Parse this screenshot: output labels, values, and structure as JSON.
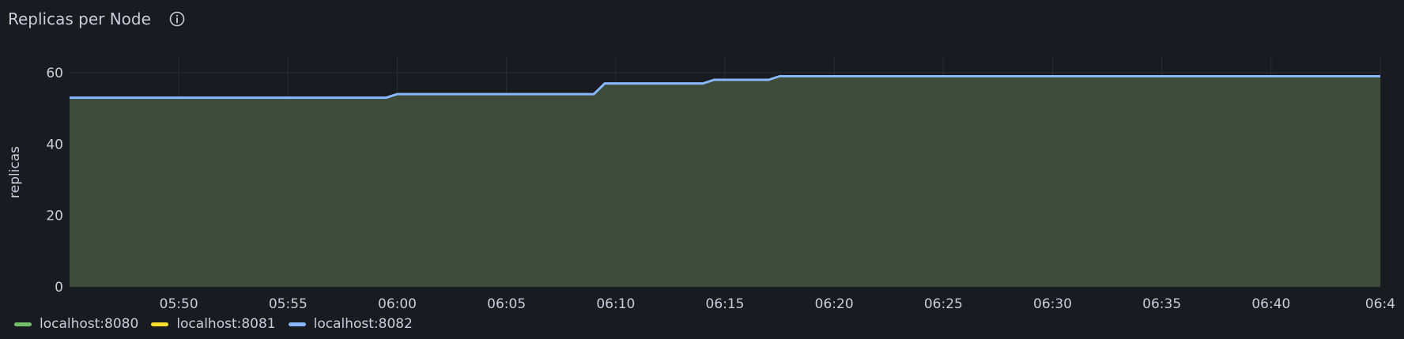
{
  "panel": {
    "title": "Replicas per Node",
    "info_icon": "info-circle-icon"
  },
  "chart_data": {
    "type": "line",
    "ylabel": "replicas",
    "xlabel": "",
    "ylim": [
      0,
      60
    ],
    "y_ticks": [
      "0",
      "20",
      "40",
      "60"
    ],
    "x_ticks": [
      "05:50",
      "05:55",
      "06:00",
      "06:05",
      "06:10",
      "06:15",
      "06:20",
      "06:25",
      "06:30",
      "06:35",
      "06:40",
      "06:4"
    ],
    "x_range": [
      "05:45",
      "06:45"
    ],
    "grid": true,
    "legend_position": "bottom-left",
    "series": [
      {
        "name": "localhost:8080",
        "color": "#73bf69",
        "x": [],
        "values": []
      },
      {
        "name": "localhost:8081",
        "color": "#fade2a",
        "x": [],
        "values": []
      },
      {
        "name": "localhost:8082",
        "color": "#8ab8ff",
        "fill": true,
        "x": [
          "05:45",
          "05:59.5",
          "06:00",
          "06:09",
          "06:09.5",
          "06:14",
          "06:14.5",
          "06:17",
          "06:17.5",
          "06:45"
        ],
        "values": [
          53,
          53,
          54,
          54,
          57,
          57,
          58,
          58,
          59,
          59
        ]
      }
    ]
  }
}
